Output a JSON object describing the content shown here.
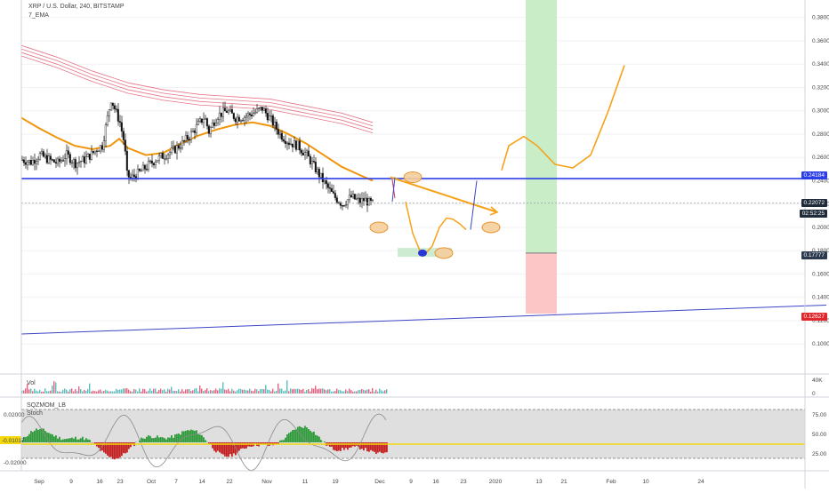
{
  "header": {
    "symbol_line": "XRP / U.S. Dollar, 240, BITSTAMP",
    "indicator": "7_EMA"
  },
  "volume_pane": {
    "label": "Vol",
    "scale_label": "40K",
    "zero_label": "0"
  },
  "oscillator_pane": {
    "labels": [
      "SQZMOM_LB",
      "Stoch"
    ],
    "left_ticks": [
      "0.02000",
      "-0.01017",
      "-0.02000"
    ],
    "right_ticks": [
      "75.00",
      "50.00",
      "25.00"
    ],
    "stoch_value_label": "-0.01017"
  },
  "price_tags": {
    "resistance": "0.24184",
    "current": "0.22072",
    "countdown": "02:52:25",
    "target_low": "0.17777",
    "stop": "0.12627"
  },
  "colors": {
    "resistance_line": "#2b3ee8",
    "trendline": "#3c44c8",
    "ema": "#f0950c",
    "ribbon": "#e0546a",
    "projection": "#f7a21b",
    "profit_zone": "#c8edc7",
    "loss_zone": "#fcc6c6",
    "squeeze_pos": "#2f9a3a",
    "squeeze_neg": "#c41e1e",
    "stoch": "#8a8a8a",
    "stoch_line": "#f4d90c"
  },
  "chart_data": {
    "type": "line",
    "series_name": "XRP / U.S. Dollar",
    "y_ticks": [
      0.38,
      0.36,
      0.34,
      0.32,
      0.3,
      0.28,
      0.26,
      0.24,
      0.22,
      0.2,
      0.18,
      0.16,
      0.14,
      0.12,
      0.1
    ],
    "y_tick_labels": [
      "0.38000",
      "0.36000",
      "0.34000",
      "0.32000",
      "0.30000",
      "0.28000",
      "0.26000",
      "0.24000",
      "0.22000",
      "0.20000",
      "0.18000",
      "0.16000",
      "0.14000",
      "0.12000",
      "0.10000"
    ],
    "ylim": [
      0.075,
      0.395
    ],
    "x_tick_labels": [
      "Sep",
      "9",
      "16",
      "23",
      "Oct",
      "7",
      "14",
      "22",
      "Nov",
      "11",
      "19",
      "Dec",
      "9",
      "16",
      "23",
      "2020",
      "13",
      "21",
      "Feb",
      "10",
      "24"
    ],
    "price_path": [
      [
        0,
        0.258
      ],
      [
        10,
        0.256
      ],
      [
        20,
        0.262
      ],
      [
        30,
        0.258
      ],
      [
        40,
        0.255
      ],
      [
        50,
        0.262
      ],
      [
        60,
        0.255
      ],
      [
        70,
        0.258
      ],
      [
        80,
        0.264
      ],
      [
        85,
        0.268
      ],
      [
        90,
        0.27
      ],
      [
        95,
        0.29
      ],
      [
        100,
        0.31
      ],
      [
        105,
        0.3
      ],
      [
        110,
        0.29
      ],
      [
        115,
        0.272
      ],
      [
        118,
        0.245
      ],
      [
        122,
        0.242
      ],
      [
        130,
        0.246
      ],
      [
        140,
        0.252
      ],
      [
        150,
        0.258
      ],
      [
        160,
        0.262
      ],
      [
        170,
        0.266
      ],
      [
        180,
        0.272
      ],
      [
        190,
        0.28
      ],
      [
        200,
        0.29
      ],
      [
        205,
        0.295
      ],
      [
        210,
        0.282
      ],
      [
        215,
        0.29
      ],
      [
        220,
        0.296
      ],
      [
        230,
        0.3
      ],
      [
        240,
        0.294
      ],
      [
        250,
        0.295
      ],
      [
        260,
        0.298
      ],
      [
        270,
        0.302
      ],
      [
        280,
        0.292
      ],
      [
        290,
        0.28
      ],
      [
        300,
        0.273
      ],
      [
        310,
        0.27
      ],
      [
        320,
        0.262
      ],
      [
        330,
        0.25
      ],
      [
        340,
        0.238
      ],
      [
        350,
        0.227
      ],
      [
        360,
        0.22
      ],
      [
        370,
        0.226
      ],
      [
        380,
        0.222
      ],
      [
        385,
        0.224
      ],
      [
        390,
        0.221
      ],
      [
        395,
        0.22
      ]
    ],
    "ema": [
      [
        0,
        0.294
      ],
      [
        20,
        0.285
      ],
      [
        40,
        0.277
      ],
      [
        60,
        0.27
      ],
      [
        80,
        0.267
      ],
      [
        100,
        0.27
      ],
      [
        110,
        0.276
      ],
      [
        120,
        0.268
      ],
      [
        140,
        0.262
      ],
      [
        160,
        0.264
      ],
      [
        180,
        0.272
      ],
      [
        200,
        0.279
      ],
      [
        220,
        0.284
      ],
      [
        240,
        0.288
      ],
      [
        260,
        0.29
      ],
      [
        280,
        0.287
      ],
      [
        300,
        0.28
      ],
      [
        320,
        0.272
      ],
      [
        340,
        0.262
      ],
      [
        360,
        0.252
      ],
      [
        380,
        0.245
      ],
      [
        395,
        0.24
      ]
    ],
    "ribbon_mid": [
      [
        0,
        0.35
      ],
      [
        40,
        0.34
      ],
      [
        80,
        0.328
      ],
      [
        120,
        0.318
      ],
      [
        160,
        0.312
      ],
      [
        200,
        0.308
      ],
      [
        240,
        0.306
      ],
      [
        280,
        0.304
      ],
      [
        320,
        0.298
      ],
      [
        360,
        0.292
      ],
      [
        395,
        0.284
      ]
    ],
    "resistance_level": 0.24184,
    "current_level": 0.22072,
    "trend_line": {
      "from": [
        0,
        0.1085
      ],
      "to": [
        905,
        0.1333
      ]
    },
    "projected_arrow": {
      "from": [
        415,
        0.243
      ],
      "to": [
        535,
        0.213
      ]
    },
    "projection_path": [
      [
        432,
        0.222
      ],
      [
        440,
        0.195
      ],
      [
        448,
        0.18
      ],
      [
        455,
        0.178
      ],
      [
        462,
        0.184
      ],
      [
        470,
        0.2
      ],
      [
        478,
        0.208
      ],
      [
        485,
        0.207
      ],
      [
        493,
        0.203
      ],
      [
        500,
        0.198
      ]
    ],
    "bull_curve": [
      [
        540,
        0.249
      ],
      [
        548,
        0.27
      ],
      [
        565,
        0.278
      ],
      [
        580,
        0.27
      ],
      [
        600,
        0.254
      ],
      [
        620,
        0.251
      ],
      [
        640,
        0.262
      ],
      [
        660,
        0.3
      ],
      [
        678,
        0.339
      ]
    ],
    "profit_zone": {
      "x_from": 591,
      "x_to": 626,
      "y_from": 0.178,
      "y_to": 0.4
    },
    "loss_zone": {
      "x_from": 591,
      "x_to": 626,
      "y_from": 0.126,
      "y_to": 0.178
    },
    "target_box": {
      "x_from": 447,
      "x_to": 508,
      "y": 0.1785
    },
    "markers": [
      [
        402,
        0.2
      ],
      [
        440,
        0.243
      ],
      [
        528,
        0.2
      ],
      [
        475,
        0.178
      ]
    ]
  }
}
